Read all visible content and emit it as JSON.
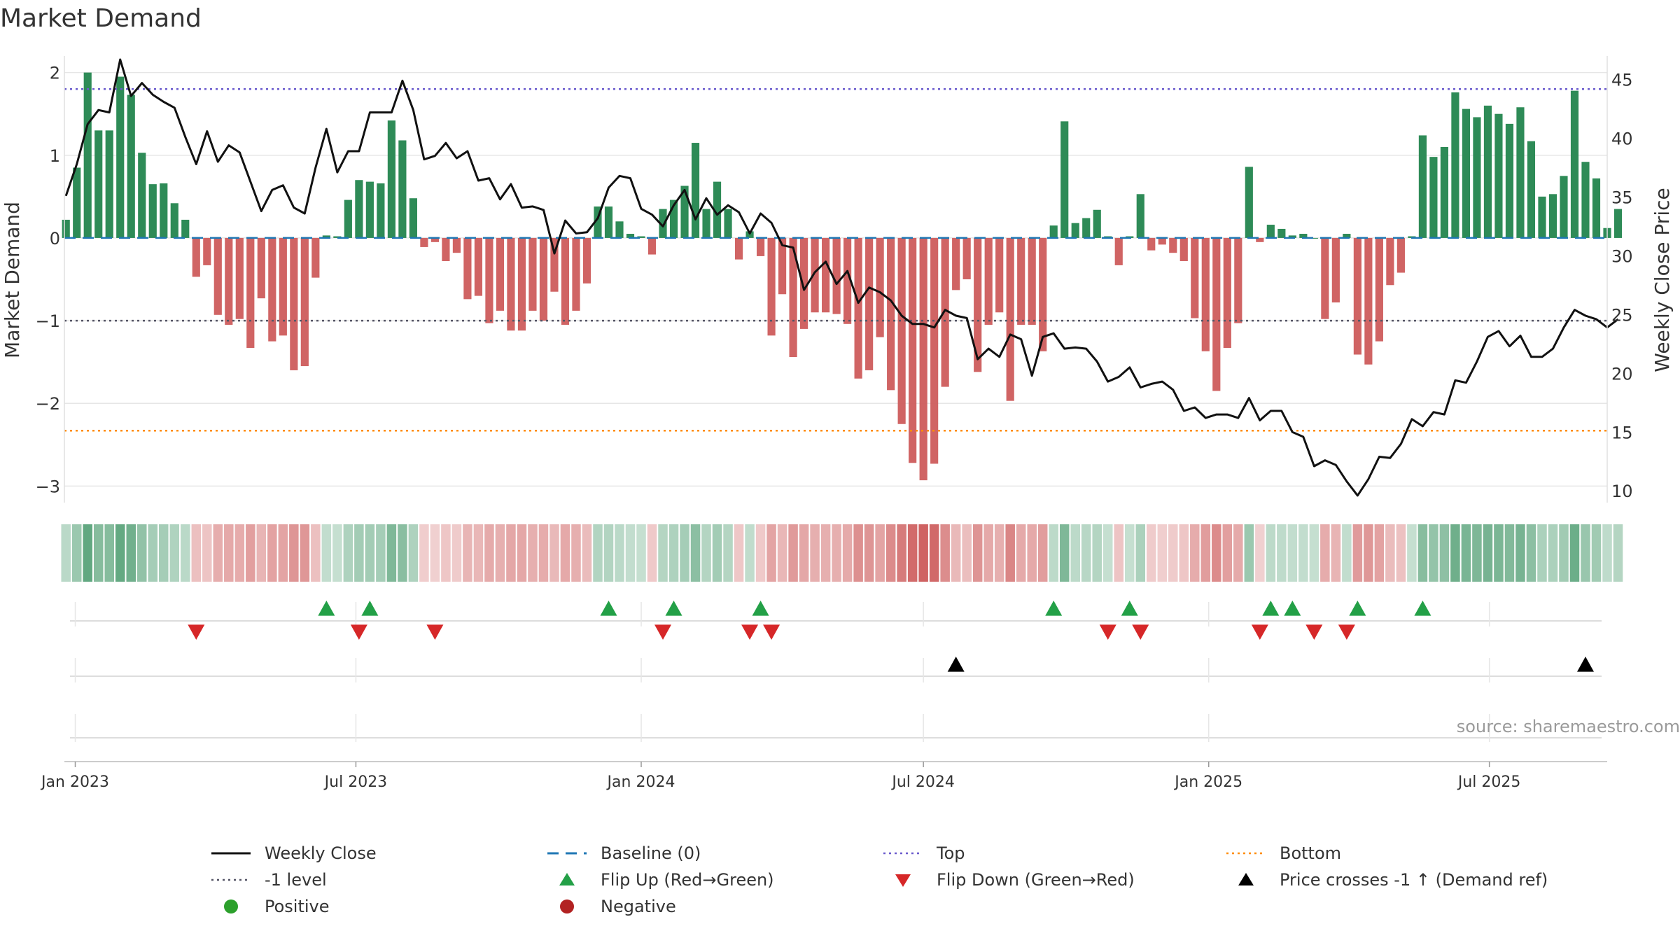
{
  "colors": {
    "positive": "#2e8b57",
    "negative": "#cd5c5c",
    "close_line": "#111111",
    "baseline": "#1f77b4",
    "top_line": "#6a5acd",
    "bottom_line": "#ff8c00",
    "minus_one_line": "#555566",
    "flip_up": "#23a047",
    "flip_down": "#d62728",
    "cross_marker": "#000000",
    "grid": "#e6e6e6",
    "legend_positive": "#2ca02c",
    "legend_negative": "#b22222"
  },
  "page": {
    "title": "Market Demand",
    "source": "source: sharemaestro.com"
  },
  "chart_data": {
    "type": "bar",
    "title": "Market Demand",
    "ylabel": "Market Demand",
    "y2label": "Weekly Close Price",
    "ylim": [
      -3.2,
      2.2
    ],
    "y2lim": [
      9,
      47
    ],
    "yticks": [
      2,
      1,
      0,
      -1,
      -2,
      -3
    ],
    "ytick_labels": [
      "2",
      "1",
      "0",
      "−1",
      "−2",
      "−3"
    ],
    "y2ticks": [
      45,
      40,
      35,
      30,
      25,
      20,
      15,
      10
    ],
    "xlim": [
      "2022-12-25",
      "2025-09-15"
    ],
    "x_ticks": [
      "2023-01-01",
      "2023-07-01",
      "2024-01-01",
      "2024-07-01",
      "2025-01-01",
      "2025-07-01"
    ],
    "x_tick_labels": [
      "Jan 2023",
      "Jul 2023",
      "Jan 2024",
      "Jul 2024",
      "Jan 2025",
      "Jul 2025"
    ],
    "start_date": "2022-12-26",
    "frequency": "weekly",
    "reference_lines": [
      {
        "name": "Baseline (0)",
        "value": 0,
        "style": "dashed"
      },
      {
        "name": "Top",
        "value": 1.8,
        "style": "dotted"
      },
      {
        "name": "-1 level",
        "value": -1,
        "style": "dotted"
      },
      {
        "name": "Bottom",
        "value": -2.33,
        "style": "dotted"
      }
    ],
    "series": [
      {
        "name": "Market Demand",
        "type": "bar",
        "values": [
          0.22,
          0.85,
          2.0,
          1.3,
          1.3,
          1.95,
          1.73,
          1.03,
          0.65,
          0.66,
          0.42,
          0.22,
          -0.47,
          -0.33,
          -0.93,
          -1.05,
          -0.98,
          -1.33,
          -0.73,
          -1.25,
          -1.18,
          -1.6,
          -1.55,
          -0.48,
          0.03,
          0.02,
          0.46,
          0.7,
          0.68,
          0.66,
          1.42,
          1.18,
          0.48,
          -0.11,
          -0.05,
          -0.28,
          -0.18,
          -0.74,
          -0.7,
          -1.03,
          -0.88,
          -1.12,
          -1.12,
          -0.88,
          -1.0,
          -0.65,
          -1.05,
          -0.88,
          -0.55,
          0.38,
          0.38,
          0.2,
          0.05,
          0.02,
          -0.2,
          0.35,
          0.46,
          0.63,
          1.15,
          0.35,
          0.68,
          0.35,
          -0.26,
          0.08,
          -0.22,
          -1.18,
          -0.68,
          -1.44,
          -1.1,
          -0.9,
          -0.9,
          -0.92,
          -1.04,
          -1.7,
          -1.6,
          -1.2,
          -1.84,
          -2.25,
          -2.72,
          -2.93,
          -2.73,
          -1.8,
          -0.63,
          -0.5,
          -1.62,
          -1.05,
          -0.9,
          -1.97,
          -1.05,
          -1.05,
          -1.37,
          0.15,
          1.41,
          0.18,
          0.24,
          0.34,
          0.02,
          -0.33,
          0.02,
          0.53,
          -0.15,
          -0.08,
          -0.18,
          -0.28,
          -0.97,
          -1.37,
          -1.85,
          -1.33,
          -1.03,
          0.86,
          -0.05,
          0.16,
          0.11,
          0.03,
          0.05,
          0.0,
          -0.98,
          -0.78,
          0.05,
          -1.41,
          -1.53,
          -1.25,
          -0.57,
          -0.42,
          0.02,
          1.24,
          0.98,
          1.1,
          1.76,
          1.56,
          1.46,
          1.6,
          1.5,
          1.38,
          1.58,
          1.17,
          0.5,
          0.53,
          0.75,
          1.78,
          0.92,
          0.72,
          0.12,
          0.35
        ]
      },
      {
        "name": "Weekly Close",
        "type": "line",
        "axis": "right",
        "values": [
          35.1,
          37.8,
          41.2,
          42.4,
          42.2,
          46.7,
          43.6,
          44.7,
          43.7,
          43.1,
          42.6,
          40.1,
          37.8,
          40.6,
          38.0,
          39.4,
          38.8,
          36.3,
          33.8,
          35.6,
          36.0,
          34.1,
          33.6,
          37.5,
          40.8,
          37.1,
          38.9,
          38.9,
          42.2,
          42.2,
          42.2,
          44.9,
          42.4,
          38.2,
          38.5,
          39.6,
          38.3,
          38.9,
          36.4,
          36.6,
          34.8,
          36.1,
          34.1,
          34.2,
          33.9,
          30.2,
          33.0,
          31.9,
          32.0,
          33.2,
          35.8,
          36.8,
          36.6,
          34.0,
          33.5,
          32.5,
          34.3,
          35.6,
          33.1,
          34.9,
          33.5,
          34.3,
          33.7,
          31.9,
          33.6,
          32.8,
          30.9,
          30.7,
          27.1,
          28.6,
          29.5,
          27.6,
          28.7,
          26.0,
          27.3,
          26.9,
          26.2,
          24.9,
          24.2,
          24.2,
          23.9,
          25.4,
          24.9,
          24.7,
          21.2,
          22.1,
          21.4,
          23.3,
          22.9,
          19.8,
          23.1,
          23.4,
          22.1,
          22.2,
          22.1,
          21.0,
          19.3,
          19.7,
          20.5,
          18.8,
          19.1,
          19.3,
          18.6,
          16.8,
          17.1,
          16.2,
          16.5,
          16.5,
          16.2,
          17.9,
          16.0,
          16.8,
          16.8,
          15.0,
          14.6,
          12.1,
          12.6,
          12.2,
          10.8,
          9.6,
          11.0,
          12.9,
          12.8,
          14.0,
          16.1,
          15.5,
          16.7,
          16.5,
          19.4,
          19.2,
          21.0,
          23.1,
          23.6,
          22.3,
          23.2,
          21.4,
          21.4,
          22.1,
          23.9,
          25.4,
          24.9,
          24.6,
          23.9,
          24.6
        ]
      }
    ],
    "flip_up_indices": [
      24,
      28,
      50,
      56,
      64,
      91,
      98,
      111,
      113,
      119,
      125
    ],
    "flip_down_indices": [
      12,
      27,
      34,
      55,
      63,
      65,
      96,
      99,
      110,
      115,
      118
    ],
    "price_cross_indices": [
      82,
      140
    ],
    "legend": [
      {
        "label": "Weekly Close",
        "symbol": "line"
      },
      {
        "label": "Baseline (0)",
        "symbol": "dash"
      },
      {
        "label": "Top",
        "symbol": "dotted-top"
      },
      {
        "label": "Bottom",
        "symbol": "dotted-bottom"
      },
      {
        "label": "-1 level",
        "symbol": "dotted-minus"
      },
      {
        "label": "Flip Up (Red→Green)",
        "symbol": "tri-up"
      },
      {
        "label": "Flip Down (Green→Red)",
        "symbol": "tri-down"
      },
      {
        "label": "Price crosses -1 ↑ (Demand ref)",
        "symbol": "tri-up-black"
      },
      {
        "label": "Positive",
        "symbol": "dot-green"
      },
      {
        "label": "Negative",
        "symbol": "dot-red"
      }
    ],
    "legend_position": "bottom",
    "grid": true
  }
}
